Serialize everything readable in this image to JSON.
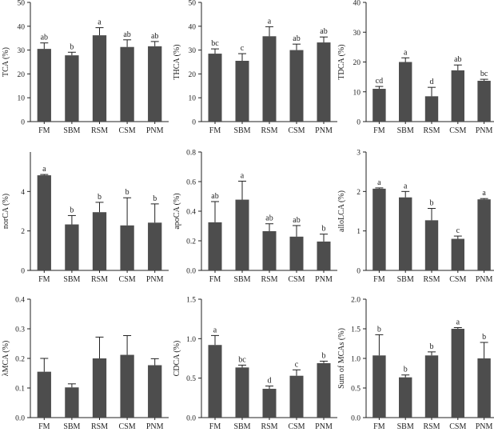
{
  "chart_data": [
    {
      "type": "bar",
      "categories": [
        "FM",
        "SBM",
        "RSM",
        "CSM",
        "PNM"
      ],
      "values": [
        30.5,
        27.8,
        36.2,
        31.3,
        31.6
      ],
      "errors": [
        2.5,
        1.3,
        3.2,
        3.0,
        2.0
      ],
      "letters": [
        "ab",
        "b",
        "a",
        "ab",
        "ab"
      ],
      "ylabel": "TCA (%)",
      "ylim": [
        0,
        50
      ],
      "yticks": [
        0,
        10,
        20,
        30,
        40,
        50
      ],
      "bar_color": "#4d4d4d"
    },
    {
      "type": "bar",
      "categories": [
        "FM",
        "SBM",
        "RSM",
        "CSM",
        "PNM"
      ],
      "values": [
        28.5,
        25.5,
        35.8,
        30.0,
        33.2
      ],
      "errors": [
        2.0,
        3.0,
        4.0,
        2.5,
        2.3
      ],
      "letters": [
        "bc",
        "c",
        "a",
        "ab",
        "ab"
      ],
      "ylabel": "THCA (%)",
      "ylim": [
        0,
        50
      ],
      "yticks": [
        0,
        10,
        20,
        30,
        40,
        50
      ],
      "bar_color": "#4d4d4d"
    },
    {
      "type": "bar",
      "categories": [
        "FM",
        "SBM",
        "RSM",
        "CSM",
        "PNM"
      ],
      "values": [
        11.0,
        20.0,
        8.5,
        17.2,
        13.7
      ],
      "errors": [
        0.8,
        1.4,
        3.0,
        1.8,
        0.5
      ],
      "letters": [
        "cd",
        "a",
        "d",
        "ab",
        "bc"
      ],
      "ylabel": "TDCA (%)",
      "ylim": [
        0,
        40
      ],
      "yticks": [
        0,
        10,
        20,
        30,
        40
      ],
      "bar_color": "#4d4d4d"
    },
    {
      "type": "bar",
      "categories": [
        "FM",
        "SBM",
        "RSM",
        "CSM",
        "PNM"
      ],
      "values": [
        4.82,
        2.33,
        2.95,
        2.28,
        2.42
      ],
      "errors": [
        0.04,
        0.45,
        0.5,
        1.4,
        0.95
      ],
      "letters": [
        "a",
        "b",
        "b",
        "b",
        "b"
      ],
      "ylabel": "norCA (%)",
      "ylim": [
        0,
        6
      ],
      "yticks": [
        0,
        2,
        4
      ],
      "bar_color": "#4d4d4d"
    },
    {
      "type": "bar",
      "categories": [
        "FM",
        "SBM",
        "RSM",
        "CSM",
        "PNM"
      ],
      "values": [
        0.325,
        0.478,
        0.265,
        0.228,
        0.195
      ],
      "errors": [
        0.14,
        0.125,
        0.05,
        0.075,
        0.05
      ],
      "letters": [
        "ab",
        "a",
        "ab",
        "ab",
        "b"
      ],
      "ylabel": "apoCA (%)",
      "ylim": [
        0,
        0.8
      ],
      "yticks": [
        0,
        0.2,
        0.4,
        0.6,
        0.8
      ],
      "ytick_labels": [
        "0.0",
        "0.2",
        "0.4",
        "0.6",
        "0.8"
      ],
      "bar_color": "#4d4d4d"
    },
    {
      "type": "bar",
      "categories": [
        "FM",
        "SBM",
        "RSM",
        "CSM",
        "PNM"
      ],
      "values": [
        2.07,
        1.85,
        1.27,
        0.8,
        1.8
      ],
      "errors": [
        0.02,
        0.15,
        0.3,
        0.07,
        0.02
      ],
      "letters": [
        "a",
        "a",
        "b",
        "c",
        "a"
      ],
      "ylabel": "alloLCA (%)",
      "ylim": [
        0,
        3
      ],
      "yticks": [
        0,
        1,
        2,
        3
      ],
      "bar_color": "#4d4d4d"
    },
    {
      "type": "bar",
      "categories": [
        "FM",
        "SBM",
        "RSM",
        "CSM",
        "PNM"
      ],
      "values": [
        0.155,
        0.102,
        0.2,
        0.212,
        0.177
      ],
      "errors": [
        0.045,
        0.012,
        0.072,
        0.065,
        0.022
      ],
      "letters": [
        "",
        "",
        "",
        "",
        ""
      ],
      "ylabel": "λMCA (%)",
      "ylim": [
        0,
        0.4
      ],
      "yticks": [
        0,
        0.1,
        0.2,
        0.3,
        0.4
      ],
      "ytick_labels": [
        "0.0",
        "0.1",
        "0.2",
        "0.3",
        "0.4"
      ],
      "bar_color": "#4d4d4d"
    },
    {
      "type": "bar",
      "categories": [
        "FM",
        "SBM",
        "RSM",
        "CSM",
        "PNM"
      ],
      "values": [
        0.92,
        0.635,
        0.365,
        0.53,
        0.69
      ],
      "errors": [
        0.12,
        0.03,
        0.035,
        0.075,
        0.025
      ],
      "letters": [
        "a",
        "bc",
        "d",
        "c",
        "b"
      ],
      "ylabel": "CDCA (%)",
      "ylim": [
        0,
        1.5
      ],
      "yticks": [
        0,
        0.5,
        1.0,
        1.5
      ],
      "ytick_labels": [
        "0.0",
        "0.5",
        "1.0",
        "1.5"
      ],
      "bar_color": "#4d4d4d"
    },
    {
      "type": "bar",
      "categories": [
        "FM",
        "SBM",
        "RSM",
        "CSM",
        "PNM"
      ],
      "values": [
        1.05,
        0.68,
        1.05,
        1.5,
        1.0
      ],
      "errors": [
        0.35,
        0.04,
        0.06,
        0.02,
        0.27
      ],
      "letters": [
        "b",
        "b",
        "b",
        "a",
        "b"
      ],
      "ylabel": "Sum of MCAs (%)",
      "ylim": [
        0,
        2.0
      ],
      "yticks": [
        0,
        0.5,
        1.0,
        1.5,
        2.0
      ],
      "ytick_labels": [
        "0.0",
        "0.5",
        "1.0",
        "1.5",
        "2.0"
      ],
      "bar_color": "#4d4d4d"
    }
  ]
}
